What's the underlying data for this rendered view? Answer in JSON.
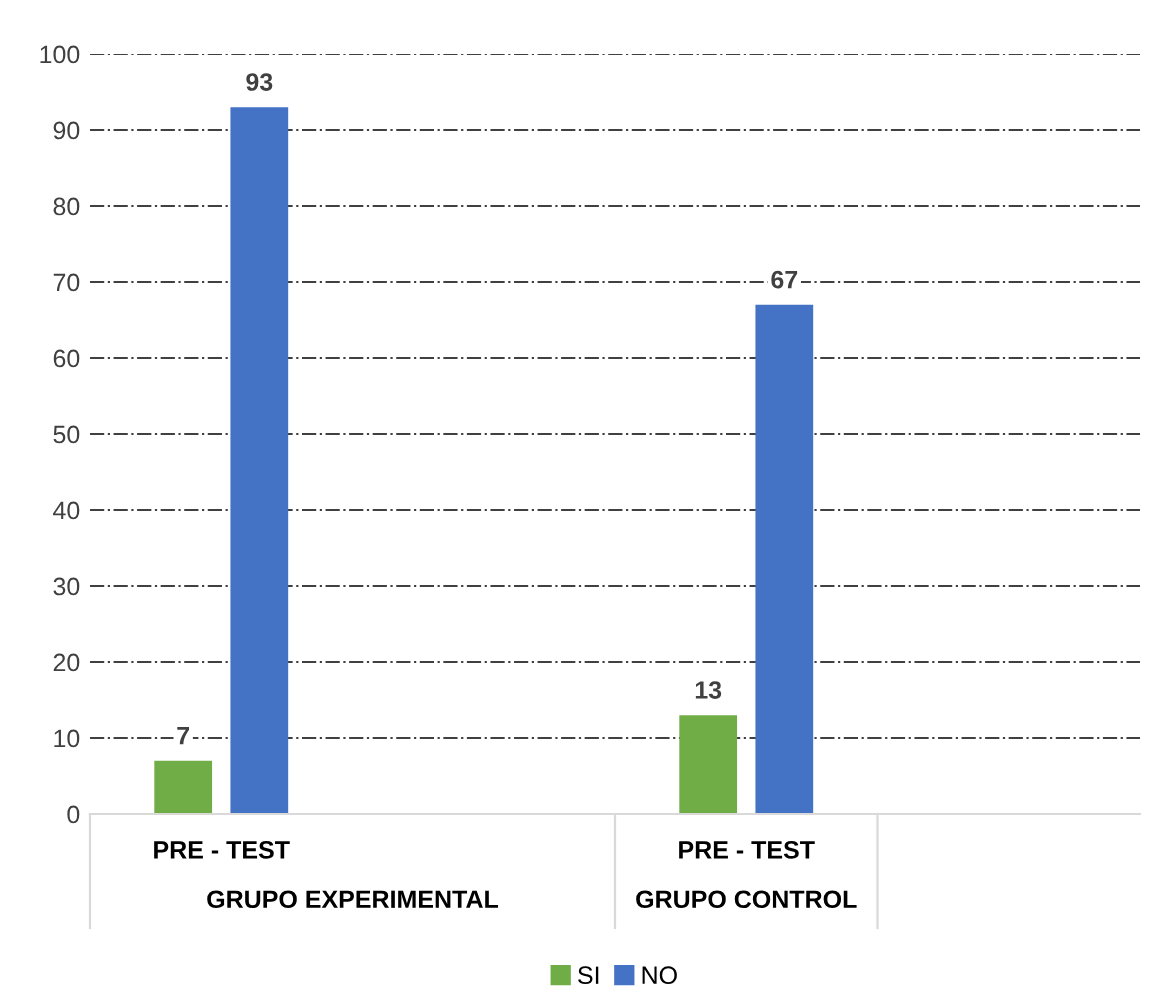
{
  "chart_data": {
    "type": "bar",
    "categories": [
      "PRE - TEST",
      null,
      "PRE - TEST",
      null
    ],
    "series": [
      {
        "name": "SI",
        "color": "#70ad47",
        "values": [
          7,
          null,
          13,
          null
        ]
      },
      {
        "name": "NO",
        "color": "#4472c4",
        "values": [
          93,
          null,
          67,
          null
        ]
      }
    ],
    "ylim": [
      0,
      100
    ],
    "yticks": [
      0,
      10,
      20,
      30,
      40,
      50,
      60,
      70,
      80,
      90,
      100
    ],
    "grid": "y",
    "legend": "bottom",
    "data_labels": true,
    "annotations": [
      "GRUPO EXPERIMENTAL",
      "GRUPO CONTROL"
    ]
  }
}
